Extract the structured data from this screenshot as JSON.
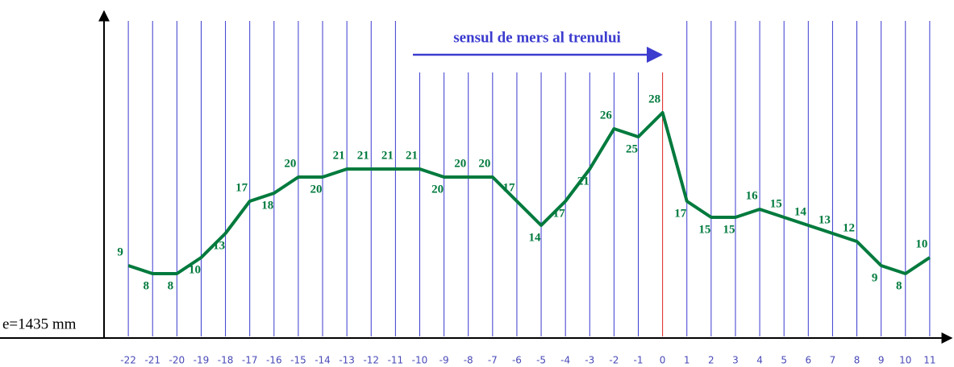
{
  "chart_data": {
    "type": "line",
    "annotation": "sensul de mers al trenului",
    "ylabel": "e=1435 mm",
    "x": [
      -22,
      -21,
      -20,
      -19,
      -18,
      -17,
      -16,
      -15,
      -14,
      -13,
      -12,
      -11,
      -10,
      -9,
      -8,
      -7,
      -6,
      -5,
      -4,
      -3,
      -2,
      -1,
      0,
      1,
      2,
      3,
      4,
      5,
      6,
      7,
      8,
      9,
      10,
      11
    ],
    "series": [
      {
        "color": "#007a3d",
        "values": [
          9,
          8,
          8,
          10,
          13,
          17,
          18,
          20,
          20,
          21,
          21,
          21,
          21,
          20,
          20,
          20,
          17,
          14,
          17,
          21,
          26,
          25,
          28,
          17,
          15,
          15,
          16,
          15,
          14,
          13,
          12,
          9,
          8,
          10
        ]
      }
    ],
    "xlim": [
      -23,
      12
    ],
    "ylim": [
      0,
      40
    ],
    "grid": true,
    "grid_color": "#3a3ad0",
    "reference_line": {
      "x": 0,
      "color": "#e02020"
    }
  }
}
